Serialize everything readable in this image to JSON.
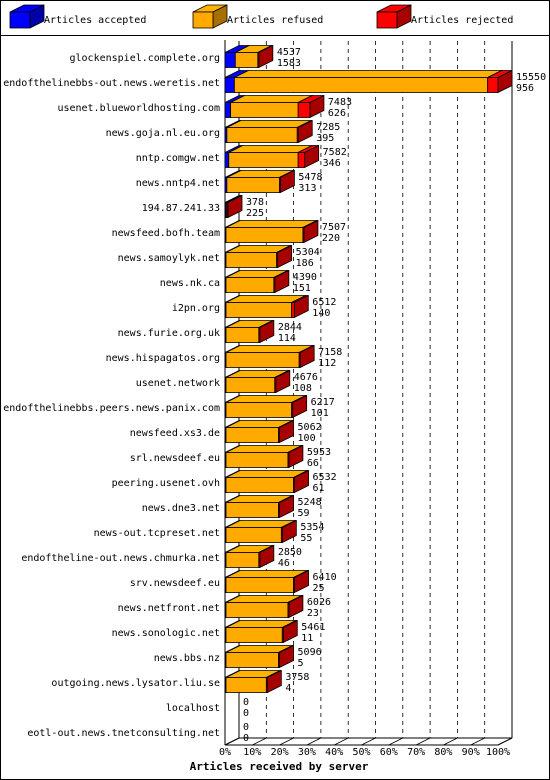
{
  "chart_data": {
    "type": "bar",
    "orientation": "horizontal",
    "stacked": true,
    "xlabel": "Articles received by server",
    "ticks": [
      "0%",
      "10%",
      "20%",
      "30%",
      "40%",
      "50%",
      "60%",
      "70%",
      "80%",
      "90%",
      "100%"
    ],
    "legend_position": "top",
    "series": [
      {
        "name": "Articles accepted",
        "color": "#0000ff"
      },
      {
        "name": "Articles refused",
        "color": "#ffaa00"
      },
      {
        "name": "Articles rejected",
        "color": "#ff0000"
      }
    ],
    "rows": [
      {
        "server": "glockenspiel.complete.org",
        "a": 550,
        "r": 1200,
        "j": 45,
        "refused_label": "4537",
        "rejected_label": "1583"
      },
      {
        "server": "endofthelinebbs-out.news.weretis.net",
        "a": 500,
        "r": 13500,
        "j": 550,
        "refused_label": "15550",
        "rejected_label": "956"
      },
      {
        "server": "usenet.blueworldhosting.com",
        "a": 300,
        "r": 3600,
        "j": 626,
        "refused_label": "7483",
        "rejected_label": "626"
      },
      {
        "server": "news.goja.nl.eu.org",
        "a": 100,
        "r": 3750,
        "j": 20,
        "refused_label": "7285",
        "rejected_label": "395"
      },
      {
        "server": "nntp.comgw.net",
        "a": 200,
        "r": 3700,
        "j": 346,
        "refused_label": "7582",
        "rejected_label": "346"
      },
      {
        "server": "news.nntp4.net",
        "a": 100,
        "r": 2800,
        "j": 20,
        "refused_label": "5478",
        "rejected_label": "313"
      },
      {
        "server": "194.87.241.33",
        "a": 20,
        "r": 30,
        "j": 5,
        "refused_label": "378",
        "rejected_label": "225"
      },
      {
        "server": "newsfeed.bofh.team",
        "a": 20,
        "r": 4100,
        "j": 20,
        "refused_label": "7507",
        "rejected_label": "220"
      },
      {
        "server": "news.samoylyk.net",
        "a": 20,
        "r": 2700,
        "j": 30,
        "refused_label": "5304",
        "rejected_label": "186"
      },
      {
        "server": "news.nk.ca",
        "a": 10,
        "r": 2550,
        "j": 10,
        "refused_label": "4390",
        "rejected_label": "151"
      },
      {
        "server": "i2pn.org",
        "a": 20,
        "r": 3500,
        "j": 140,
        "refused_label": "6512",
        "rejected_label": "140"
      },
      {
        "server": "news.furie.org.uk",
        "a": 10,
        "r": 1750,
        "j": 20,
        "refused_label": "2844",
        "rejected_label": "114"
      },
      {
        "server": "news.hispagatos.org",
        "a": 20,
        "r": 3900,
        "j": 20,
        "refused_label": "7158",
        "rejected_label": "112"
      },
      {
        "server": "usenet.network",
        "a": 10,
        "r": 2600,
        "j": 20,
        "refused_label": "4676",
        "rejected_label": "108"
      },
      {
        "server": "endofthelinebbs.peers.news.panix.com",
        "a": 10,
        "r": 3500,
        "j": 20,
        "refused_label": "6217",
        "rejected_label": "101"
      },
      {
        "server": "newsfeed.xs3.de",
        "a": 10,
        "r": 2800,
        "j": 20,
        "refused_label": "5062",
        "rejected_label": "100"
      },
      {
        "server": "srl.newsdeef.eu",
        "a": 10,
        "r": 3300,
        "j": 20,
        "refused_label": "5953",
        "rejected_label": "66"
      },
      {
        "server": "peering.usenet.ovh",
        "a": 10,
        "r": 3600,
        "j": 20,
        "refused_label": "6532",
        "rejected_label": "61"
      },
      {
        "server": "news.dne3.net",
        "a": 10,
        "r": 2800,
        "j": 20,
        "refused_label": "5248",
        "rejected_label": "59"
      },
      {
        "server": "news-out.tcpreset.net",
        "a": 10,
        "r": 2950,
        "j": 20,
        "refused_label": "5354",
        "rejected_label": "55"
      },
      {
        "server": "endoftheline-out.news.chmurka.net",
        "a": 10,
        "r": 1750,
        "j": 20,
        "refused_label": "2850",
        "rejected_label": "46"
      },
      {
        "server": "srv.newsdeef.eu",
        "a": 10,
        "r": 3600,
        "j": 25,
        "refused_label": "6410",
        "rejected_label": "25"
      },
      {
        "server": "news.netfront.net",
        "a": 10,
        "r": 3300,
        "j": 23,
        "refused_label": "6026",
        "rejected_label": "23"
      },
      {
        "server": "news.sonologic.net",
        "a": 10,
        "r": 3000,
        "j": 11,
        "refused_label": "5461",
        "rejected_label": "11"
      },
      {
        "server": "news.bbs.nz",
        "a": 10,
        "r": 2800,
        "j": 5,
        "refused_label": "5096",
        "rejected_label": "5"
      },
      {
        "server": "outgoing.news.lysator.liu.se",
        "a": 10,
        "r": 2150,
        "j": 4,
        "refused_label": "3758",
        "rejected_label": "4"
      },
      {
        "server": "localhost",
        "a": 0,
        "r": 0,
        "j": 0,
        "refused_label": "0",
        "rejected_label": "0"
      },
      {
        "server": "eotl-out.news.tnetconsulting.net",
        "a": 0,
        "r": 0,
        "j": 0,
        "refused_label": "0",
        "rejected_label": "0"
      }
    ]
  }
}
